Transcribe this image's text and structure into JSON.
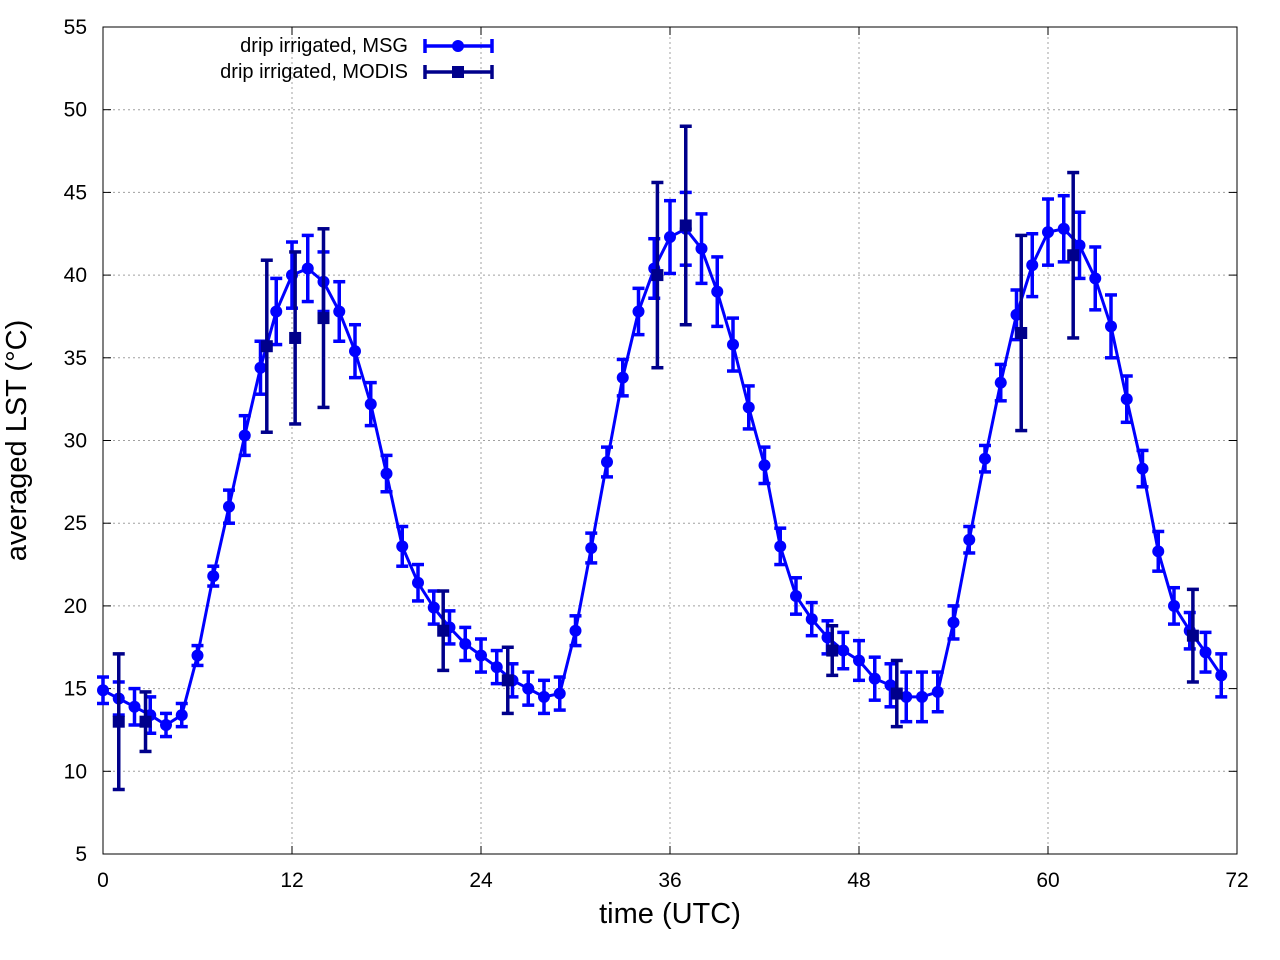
{
  "chart_data": {
    "type": "line",
    "title": "",
    "xlabel": "time (UTC)",
    "ylabel": "averaged LST (°C)",
    "xlim": [
      0,
      72
    ],
    "ylim": [
      5,
      55
    ],
    "xticks": [
      0,
      12,
      24,
      36,
      48,
      60,
      72
    ],
    "yticks": [
      5,
      10,
      15,
      20,
      25,
      30,
      35,
      40,
      45,
      50,
      55
    ],
    "grid": true,
    "legend_position": "top-left",
    "series": [
      {
        "name": "drip irrigated, MSG",
        "color": "#0000ff",
        "marker": "circle",
        "x": [
          0,
          1,
          2,
          3,
          4,
          5,
          6,
          7,
          8,
          9,
          10,
          11,
          12,
          13,
          14,
          15,
          16,
          17,
          18,
          19,
          20,
          21,
          22,
          23,
          24,
          25,
          26,
          27,
          28,
          29,
          30,
          31,
          32,
          33,
          34,
          35,
          36,
          37,
          38,
          39,
          40,
          41,
          42,
          43,
          44,
          45,
          46,
          47,
          48,
          49,
          50,
          51,
          52,
          53,
          54,
          55,
          56,
          57,
          58,
          59,
          60,
          61,
          62,
          63,
          64,
          65,
          66,
          67,
          68,
          69,
          70,
          71
        ],
        "y": [
          14.9,
          14.4,
          13.9,
          13.4,
          12.8,
          13.4,
          17.0,
          21.8,
          26.0,
          30.3,
          34.4,
          37.8,
          40.0,
          40.4,
          39.6,
          37.8,
          35.4,
          32.2,
          28.0,
          23.6,
          21.4,
          19.9,
          18.7,
          17.7,
          17.0,
          16.3,
          15.5,
          15.0,
          14.5,
          14.7,
          18.5,
          23.5,
          28.7,
          33.8,
          37.8,
          40.4,
          42.3,
          42.8,
          41.6,
          39.0,
          35.8,
          32.0,
          28.5,
          23.6,
          20.6,
          19.2,
          18.1,
          17.3,
          16.7,
          15.6,
          15.2,
          14.5,
          14.5,
          14.8,
          19.0,
          24.0,
          28.9,
          33.5,
          37.6,
          40.6,
          42.6,
          42.8,
          41.8,
          39.8,
          36.9,
          32.5,
          28.3,
          23.3,
          20.0,
          18.5,
          17.2,
          15.8
        ],
        "err": [
          0.8,
          1.0,
          1.1,
          1.1,
          0.7,
          0.7,
          0.6,
          0.6,
          1.0,
          1.2,
          1.6,
          2.0,
          2.0,
          2.0,
          1.8,
          1.8,
          1.6,
          1.3,
          1.1,
          1.2,
          1.1,
          1.0,
          1.0,
          1.0,
          1.0,
          1.0,
          1.0,
          1.0,
          1.0,
          1.0,
          0.9,
          0.9,
          0.9,
          1.1,
          1.4,
          1.8,
          2.2,
          2.2,
          2.1,
          2.1,
          1.6,
          1.3,
          1.1,
          1.1,
          1.1,
          1.0,
          1.0,
          1.1,
          1.2,
          1.3,
          1.3,
          1.5,
          1.5,
          1.2,
          1.0,
          0.8,
          0.8,
          1.1,
          1.5,
          1.9,
          2.0,
          2.0,
          2.0,
          1.9,
          1.9,
          1.4,
          1.1,
          1.2,
          1.1,
          1.1,
          1.2,
          1.3
        ]
      },
      {
        "name": "drip irrigated, MODIS",
        "color": "#00008b",
        "marker": "square",
        "x": [
          1.0,
          2.7,
          10.4,
          12.2,
          14.0,
          21.6,
          25.7,
          35.2,
          37.0,
          46.3,
          50.4,
          58.3,
          61.6,
          69.2
        ],
        "y": [
          13.0,
          13.0,
          35.7,
          36.2,
          37.4,
          18.5,
          15.5,
          40.0,
          43.0,
          17.3,
          14.7,
          36.5,
          41.2,
          18.2
        ],
        "err": [
          4.1,
          1.8,
          5.2,
          5.2,
          5.4,
          2.4,
          2.0,
          5.6,
          6.0,
          1.5,
          2.0,
          5.9,
          5.0,
          2.8
        ]
      }
    ]
  }
}
